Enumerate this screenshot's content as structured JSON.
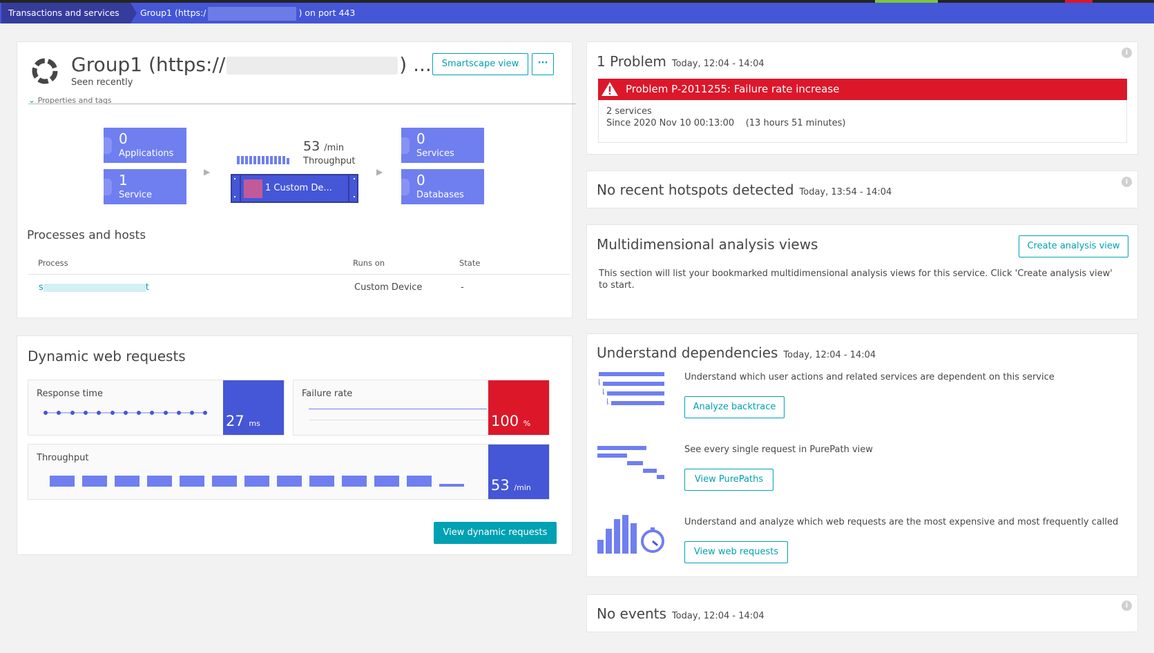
{
  "breadcrumb": {
    "root": "Transactions and services",
    "current_prefix": "Group1 (https:/",
    "current_suffix": ") on port 443"
  },
  "service": {
    "title_prefix": "Group1 (https://",
    "title_suffix": ") ...",
    "status": "Seen recently",
    "properties_label": "Properties and tags",
    "smartscape_label": "Smartscape view",
    "more_label": "···"
  },
  "flow": {
    "applications_count": "0",
    "applications_label": "Applications",
    "service_count": "1",
    "service_label": "Service",
    "throughput_value": "53",
    "throughput_unit": "/min",
    "throughput_label": "Throughput",
    "custom_device_label": "1 Custom De...",
    "services_count": "0",
    "services_label": "Services",
    "databases_count": "0",
    "databases_label": "Databases"
  },
  "processes": {
    "title": "Processes and hosts",
    "columns": [
      "Process",
      "Runs on",
      "State"
    ],
    "rows": [
      {
        "process_start": "s",
        "process_end": "t",
        "runs_on": "Custom Device",
        "state": "-"
      }
    ]
  },
  "dynamic": {
    "title": "Dynamic web requests",
    "response_time_label": "Response time",
    "response_time_value": "27",
    "response_time_unit": "ms",
    "failure_rate_label": "Failure rate",
    "failure_rate_value": "100",
    "failure_rate_unit": "%",
    "throughput_label": "Throughput",
    "throughput_value": "53",
    "throughput_unit": "/min",
    "view_button": "View dynamic requests"
  },
  "problems": {
    "title": "1 Problem",
    "time": "Today, 12:04 - 14:04",
    "banner": "Problem P-2011255: Failure rate increase",
    "services": "2 services",
    "since": "Since 2020 Nov 10 00:13:00",
    "duration": "(13 hours 51 minutes)"
  },
  "hotspots": {
    "title": "No recent hotspots detected",
    "time": "Today, 13:54 - 14:04"
  },
  "analysis": {
    "title": "Multidimensional analysis views",
    "create_button": "Create analysis view",
    "description": "This section will list your bookmarked multidimensional analysis views for this service. Click 'Create analysis view' to start."
  },
  "dependencies": {
    "title": "Understand dependencies",
    "time": "Today, 12:04 - 14:04",
    "items": [
      {
        "text": "Understand which user actions and related services are dependent on this service",
        "button": "Analyze backtrace"
      },
      {
        "text": "See every single request in PurePath view",
        "button": "View PurePaths"
      },
      {
        "text": "Understand and analyze which web requests are the most expensive and most frequently called",
        "button": "View web requests"
      }
    ]
  },
  "events": {
    "title": "No events",
    "time": "Today, 12:04 - 14:04"
  },
  "colors": {
    "accent": "#00a1b2",
    "tile_blue": "#6f7ff0",
    "metric_blue": "#4556d7",
    "error_red": "#dc172a",
    "breadcrumb": "#4556d7"
  },
  "icons": [
    "service-ring-icon",
    "chevron-down-icon",
    "warning-icon",
    "info-icon",
    "backtrace-icon",
    "purepath-icon",
    "web-requests-icon"
  ]
}
